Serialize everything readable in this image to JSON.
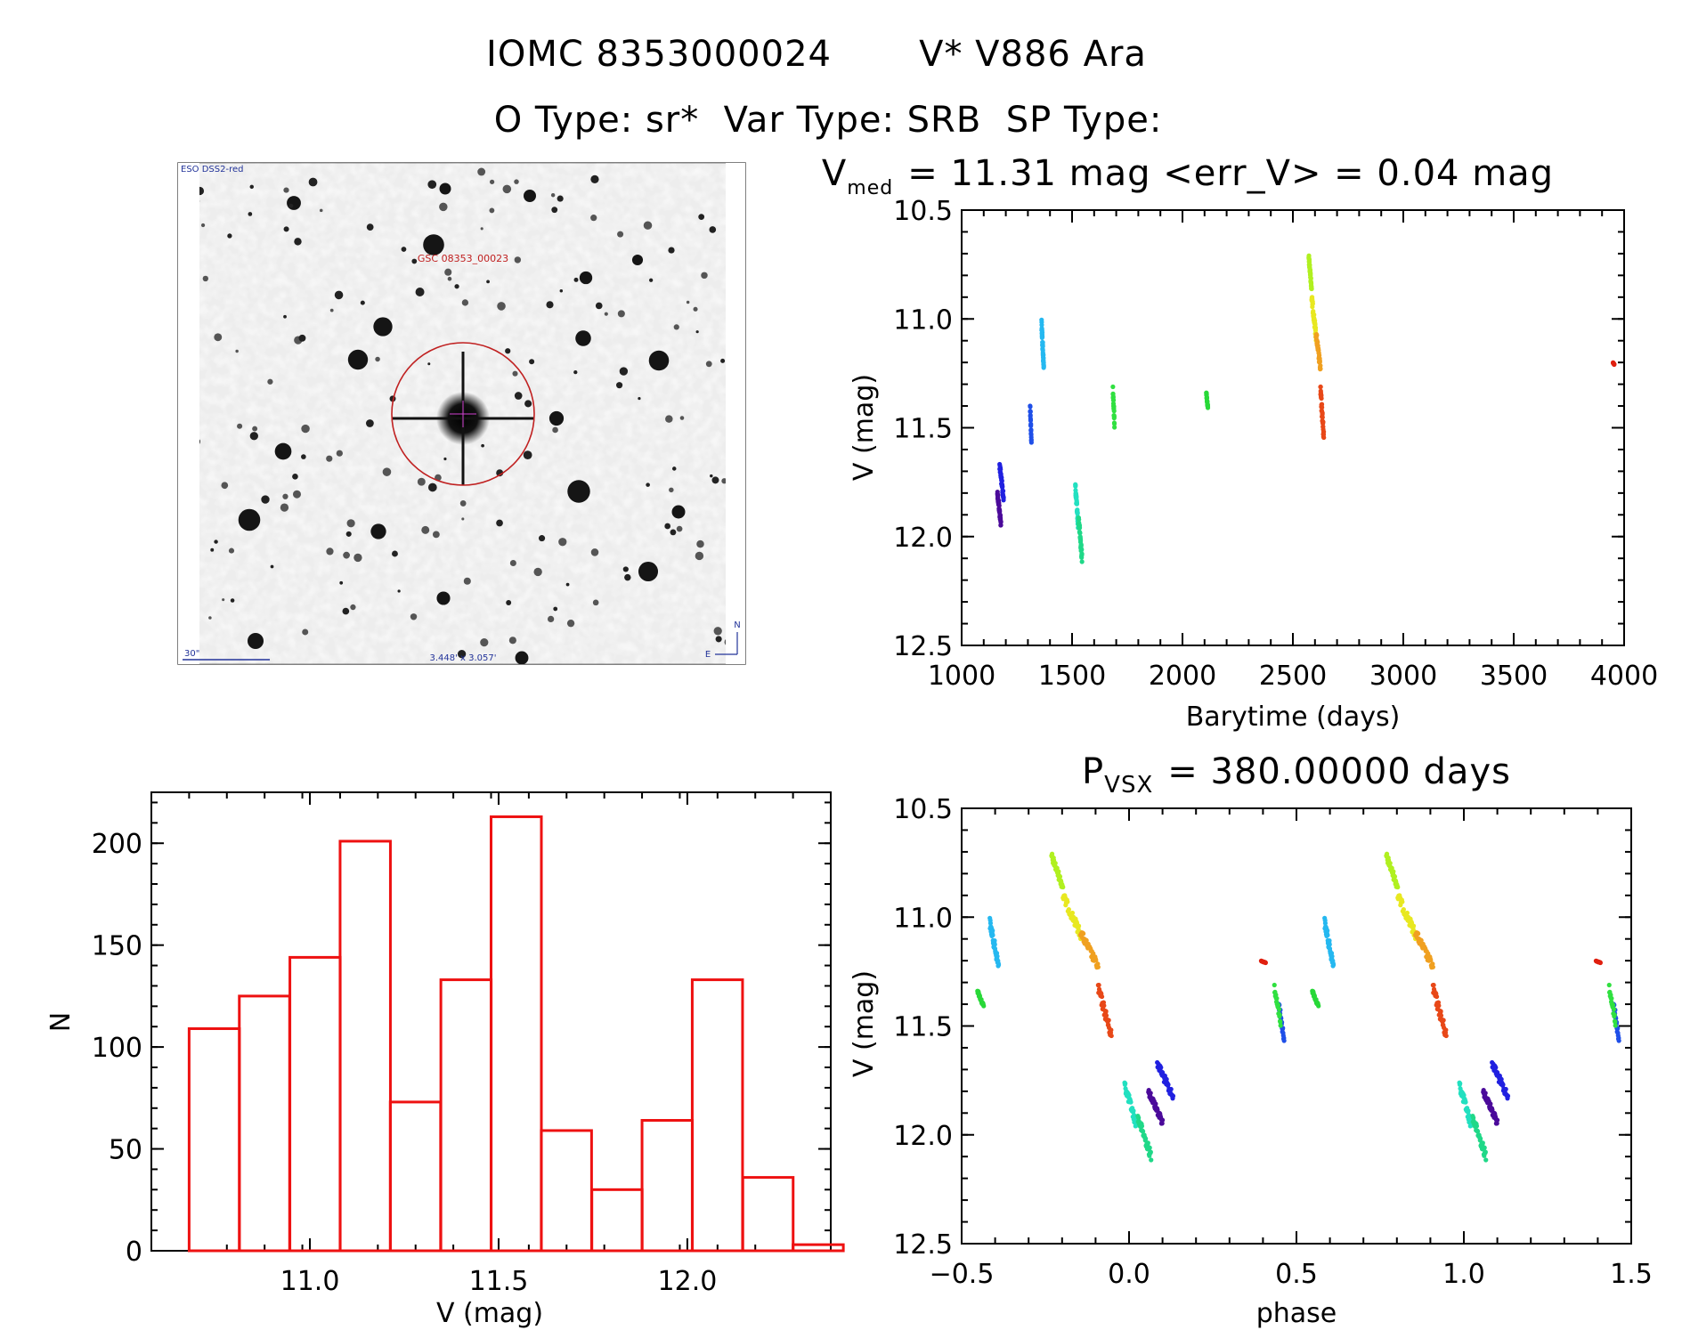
{
  "title": {
    "line1_id": "IOMC 8353000024",
    "line1_name": "V* V886 Ara",
    "line2": "O Type: sr*  Var Type: SRB  SP Type:"
  },
  "finder": {
    "survey_label": "ESO DSS2-red",
    "star_label": "GSC 08353_00023",
    "scale_label": "30\"",
    "fov_label": "3.448' x 3.057'",
    "north_label": "N",
    "east_label": "E"
  },
  "chart_data": [
    {
      "id": "lightcurve",
      "type": "scatter",
      "title_prefix": "V",
      "title_sub": "med",
      "title_rest": "= 11.31 mag <err_V> = 0.04 mag",
      "xlabel": "Barytime (days)",
      "ylabel": "V (mag)",
      "xlim": [
        1000,
        4000
      ],
      "ylim": [
        10.5,
        12.5
      ],
      "y_inverted": true,
      "xticks": [
        1000,
        1500,
        2000,
        2500,
        3000,
        3500,
        4000
      ],
      "yticks": [
        10.5,
        11.0,
        11.5,
        12.0,
        12.5
      ],
      "series": [
        {
          "color": "#4b0a9a",
          "x_range": [
            1162,
            1178
          ],
          "y_range": [
            11.78,
            11.96
          ]
        },
        {
          "color": "#2020e0",
          "x_range": [
            1172,
            1190
          ],
          "y_range": [
            11.65,
            11.85
          ]
        },
        {
          "color": "#1f4fe8",
          "x_range": [
            1310,
            1316
          ],
          "y_range": [
            11.38,
            11.58
          ]
        },
        {
          "color": "#25b8f0",
          "x_range": [
            1362,
            1372
          ],
          "y_range": [
            11.0,
            11.25
          ]
        },
        {
          "color": "#22e0c0",
          "x_range": [
            1515,
            1528
          ],
          "y_range": [
            11.75,
            11.97
          ]
        },
        {
          "color": "#20d888",
          "x_range": [
            1530,
            1545
          ],
          "y_range": [
            11.9,
            12.12
          ]
        },
        {
          "color": "#30e040",
          "x_range": [
            1685,
            1692
          ],
          "y_range": [
            11.3,
            11.5
          ]
        },
        {
          "color": "#28d838",
          "x_range": [
            2108,
            2115
          ],
          "y_range": [
            11.33,
            11.42
          ]
        },
        {
          "color": "#b0f020",
          "x_range": [
            2572,
            2585
          ],
          "y_range": [
            10.7,
            10.88
          ]
        },
        {
          "color": "#e8e820",
          "x_range": [
            2585,
            2605
          ],
          "y_range": [
            10.88,
            11.1
          ]
        },
        {
          "color": "#f0a020",
          "x_range": [
            2605,
            2625
          ],
          "y_range": [
            11.05,
            11.25
          ]
        },
        {
          "color": "#e84818",
          "x_range": [
            2625,
            2640
          ],
          "y_range": [
            11.3,
            11.57
          ]
        },
        {
          "color": "#e02010",
          "x_range": [
            3950,
            3955
          ],
          "y_range": [
            11.2,
            11.21
          ]
        }
      ]
    },
    {
      "id": "histogram",
      "type": "bar",
      "xlabel": "V (mag)",
      "ylabel": "N",
      "xlim": [
        10.58,
        12.38
      ],
      "ylim": [
        0,
        225
      ],
      "xticks": [
        11.0,
        11.5,
        12.0
      ],
      "yticks": [
        0,
        50,
        100,
        150,
        200
      ],
      "color": "#ee1111",
      "bin_width": 0.1333,
      "bin_starts": [
        10.68,
        10.813,
        10.947,
        11.08,
        11.213,
        11.347,
        11.48,
        11.613,
        11.747,
        11.88,
        12.013,
        12.147
      ],
      "values": [
        109,
        125,
        144,
        201,
        73,
        133,
        213,
        59,
        30,
        64,
        133,
        36,
        3
      ],
      "bin_starts_full": [
        10.68,
        10.813,
        10.947,
        11.08,
        11.213,
        11.347,
        11.48,
        11.613,
        11.747,
        11.88,
        12.013,
        12.147,
        12.28
      ]
    },
    {
      "id": "phased",
      "type": "scatter",
      "title_prefix": "P",
      "title_sub": "VSX",
      "title_rest": "= 380.00000 days",
      "xlabel": "phase",
      "ylabel": "V (mag)",
      "xlim": [
        -0.5,
        1.5
      ],
      "ylim": [
        10.5,
        12.5
      ],
      "y_inverted": true,
      "xticks": [
        -0.5,
        0.0,
        0.5,
        1.0,
        1.5
      ],
      "xtick_labels": [
        "−0.5",
        "0.0",
        "0.5",
        "1.0",
        "1.5"
      ],
      "yticks": [
        10.5,
        11.0,
        11.5,
        12.0,
        12.5
      ]
    }
  ]
}
